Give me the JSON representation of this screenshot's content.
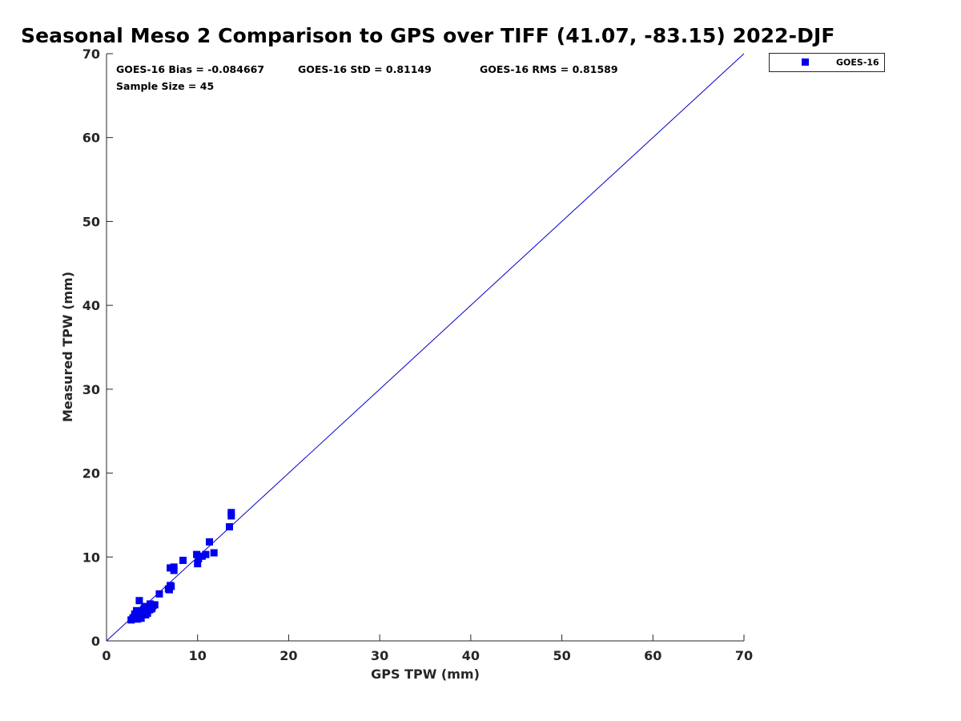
{
  "chart_data": {
    "type": "scatter",
    "title": "Seasonal Meso 2 Comparison to GPS over TIFF (41.07, -83.15) 2022-DJF",
    "xlabel": "GPS TPW (mm)",
    "ylabel": "Measured TPW (mm)",
    "xlim": [
      0,
      70
    ],
    "ylim": [
      0,
      70
    ],
    "xticks": [
      "0",
      "10",
      "20",
      "30",
      "40",
      "50",
      "60",
      "70"
    ],
    "yticks": [
      "0",
      "10",
      "20",
      "30",
      "40",
      "50",
      "60",
      "70"
    ],
    "grid": false,
    "legend_position": "outside-top-right",
    "reference_line": {
      "from": [
        0,
        0
      ],
      "to": [
        70,
        70
      ],
      "color": "#0000cc"
    },
    "stats": {
      "bias": "GOES-16 Bias = -0.084667",
      "std": "GOES-16 StD = 0.81149",
      "rms": "GOES-16 RMS = 0.81589",
      "sample": "Sample Size = 45"
    },
    "series": [
      {
        "name": "GOES-16",
        "color": "#0000ee",
        "marker": "square",
        "points": [
          [
            2.7,
            2.5
          ],
          [
            2.9,
            2.7
          ],
          [
            3.2,
            2.9
          ],
          [
            3.4,
            2.6
          ],
          [
            3.5,
            3.3
          ],
          [
            3.3,
            3.6
          ],
          [
            3.7,
            3.0
          ],
          [
            3.8,
            2.7
          ],
          [
            3.6,
            4.8
          ],
          [
            4.0,
            3.4
          ],
          [
            4.1,
            3.8
          ],
          [
            4.3,
            3.1
          ],
          [
            4.4,
            3.6
          ],
          [
            4.6,
            4.0
          ],
          [
            4.8,
            4.4
          ],
          [
            4.9,
            3.8
          ],
          [
            5.0,
            3.9
          ],
          [
            5.3,
            4.3
          ],
          [
            5.8,
            5.6
          ],
          [
            4.2,
            4.1
          ],
          [
            3.9,
            3.6
          ],
          [
            6.9,
            6.1
          ],
          [
            7.0,
            6.6
          ],
          [
            7.1,
            6.5
          ],
          [
            7.0,
            8.7
          ],
          [
            7.4,
            8.4
          ],
          [
            7.4,
            8.8
          ],
          [
            8.4,
            9.6
          ],
          [
            9.9,
            10.3
          ],
          [
            10.0,
            9.2
          ],
          [
            10.1,
            9.8
          ],
          [
            10.5,
            10.1
          ],
          [
            10.9,
            10.3
          ],
          [
            11.3,
            11.8
          ],
          [
            11.8,
            10.5
          ],
          [
            13.5,
            13.6
          ],
          [
            13.7,
            14.9
          ],
          [
            13.7,
            15.3
          ],
          [
            3.1,
            3.2
          ],
          [
            4.5,
            3.3
          ],
          [
            3.0,
            2.8
          ],
          [
            5.1,
            4.2
          ],
          [
            4.7,
            3.7
          ],
          [
            3.4,
            2.9
          ],
          [
            6.8,
            6.2
          ]
        ]
      }
    ]
  }
}
